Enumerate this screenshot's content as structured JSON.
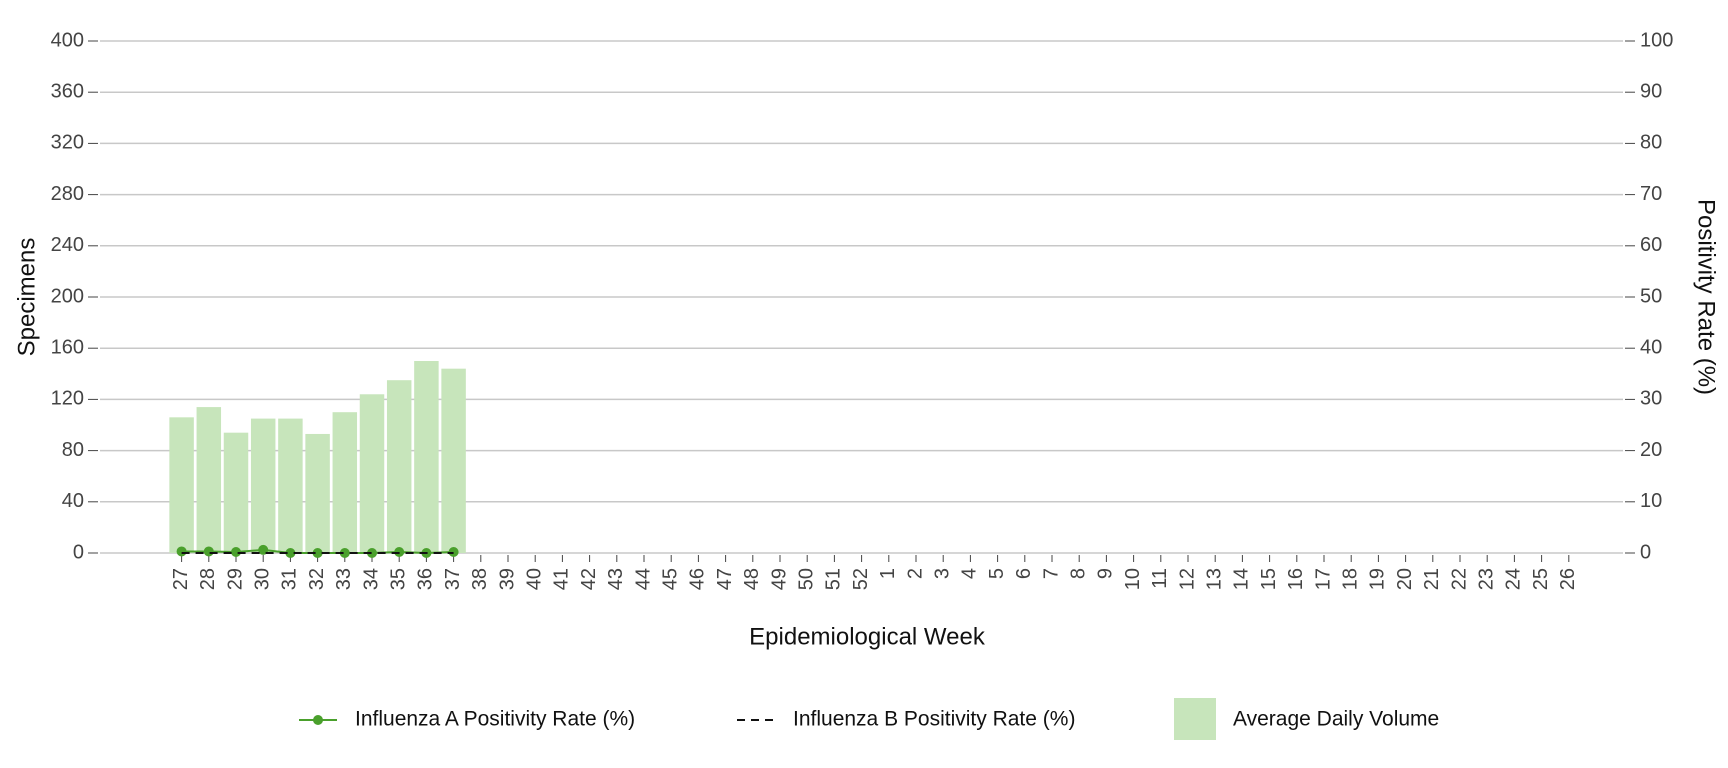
{
  "chart_data": {
    "type": "bar",
    "x_label": "Epidemiological Week",
    "y_label": "Specimens",
    "y2_label": "Positivity Rate (%)",
    "categories": [
      "27",
      "28",
      "29",
      "30",
      "31",
      "32",
      "33",
      "34",
      "35",
      "36",
      "37",
      "38",
      "39",
      "40",
      "41",
      "42",
      "43",
      "44",
      "45",
      "46",
      "47",
      "48",
      "49",
      "50",
      "51",
      "52",
      "1",
      "2",
      "3",
      "4",
      "5",
      "6",
      "7",
      "8",
      "9",
      "10",
      "11",
      "12",
      "13",
      "14",
      "15",
      "16",
      "17",
      "18",
      "19",
      "20",
      "21",
      "22",
      "23",
      "24",
      "25",
      "26"
    ],
    "series": [
      {
        "name": "Influenza A Positivity Rate (%)",
        "type": "line",
        "axis": "y2",
        "color": "#4aa02c",
        "markers": true,
        "values": [
          0.3,
          0.3,
          0.2,
          0.6,
          0,
          0,
          0,
          0,
          0.2,
          0,
          0.2,
          null,
          null,
          null,
          null,
          null,
          null,
          null,
          null,
          null,
          null,
          null,
          null,
          null,
          null,
          null,
          null,
          null,
          null,
          null,
          null,
          null,
          null,
          null,
          null,
          null,
          null,
          null,
          null,
          null,
          null,
          null,
          null,
          null,
          null,
          null,
          null,
          null,
          null,
          null,
          null,
          null
        ]
      },
      {
        "name": "Influenza B Positivity Rate (%)",
        "type": "line",
        "axis": "y2",
        "color": "#111111",
        "dashed": true,
        "values": [
          0,
          0,
          0,
          0,
          0,
          0,
          0,
          0,
          0,
          0,
          0,
          null,
          null,
          null,
          null,
          null,
          null,
          null,
          null,
          null,
          null,
          null,
          null,
          null,
          null,
          null,
          null,
          null,
          null,
          null,
          null,
          null,
          null,
          null,
          null,
          null,
          null,
          null,
          null,
          null,
          null,
          null,
          null,
          null,
          null,
          null,
          null,
          null,
          null,
          null,
          null,
          null
        ]
      },
      {
        "name": "Average Daily Volume",
        "type": "bar",
        "color": "#c7e5bb",
        "values": [
          106,
          114,
          94,
          105,
          105,
          93,
          110,
          124,
          135,
          150,
          144,
          null,
          null,
          null,
          null,
          null,
          null,
          null,
          null,
          null,
          null,
          null,
          null,
          null,
          null,
          null,
          null,
          null,
          null,
          null,
          null,
          null,
          null,
          null,
          null,
          null,
          null,
          null,
          null,
          null,
          null,
          null,
          null,
          null,
          null,
          null,
          null,
          null,
          null,
          null,
          null,
          null
        ]
      }
    ],
    "ylim": [
      0,
      400
    ],
    "yticks": [
      0,
      40,
      80,
      120,
      160,
      200,
      240,
      280,
      320,
      360,
      400
    ],
    "y2lim": [
      0,
      100
    ],
    "y2ticks": [
      0,
      10,
      20,
      30,
      40,
      50,
      60,
      70,
      80,
      90,
      100
    ],
    "grid": true,
    "legend": "bottom"
  }
}
